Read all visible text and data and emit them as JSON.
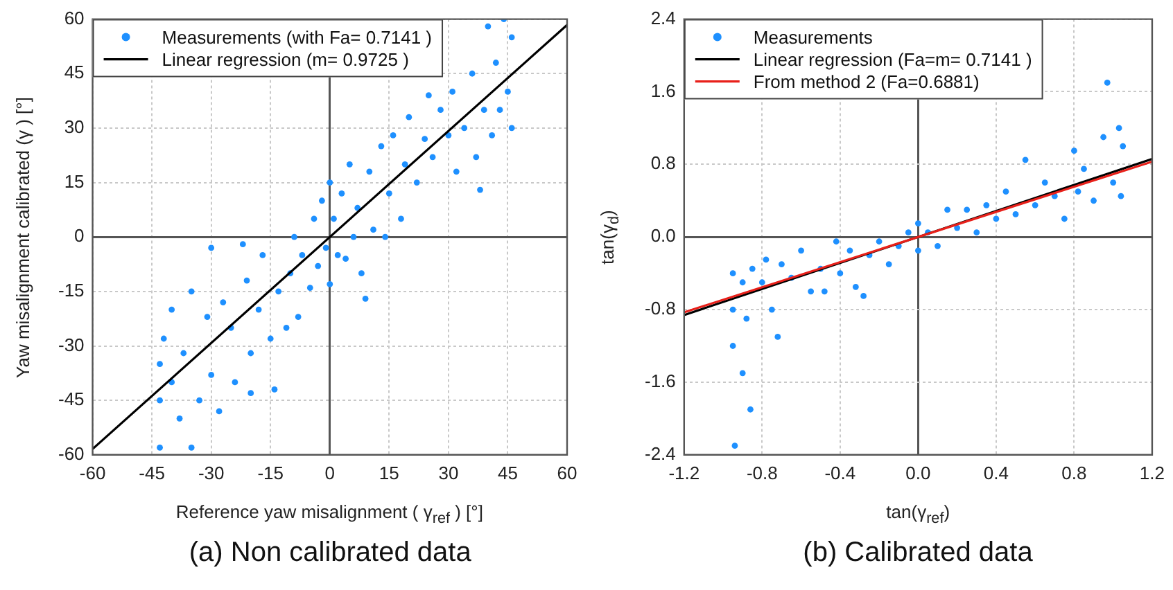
{
  "chart_data": [
    {
      "type": "scatter",
      "title": "(a) Non calibrated data",
      "xlabel": "Reference yaw misalignment ( γ$_{ref}$ ) [°]",
      "ylabel": "Yaw misalignment calibrated (γ ) [°]",
      "xlim": [
        -60,
        60
      ],
      "ylim": [
        -60,
        60
      ],
      "xticks": [
        -60,
        -45,
        -30,
        -15,
        0,
        15,
        30,
        45,
        60
      ],
      "yticks": [
        -60,
        -45,
        -30,
        -15,
        0,
        15,
        30,
        45,
        60
      ],
      "grid": true,
      "legend": "top left",
      "series": [
        {
          "name": "Measurements (with Fa= 0.7141 )",
          "type": "scatter",
          "marker": "circle",
          "color": "#1e90ff",
          "x": [
            -43,
            -43,
            -43,
            -42,
            -40,
            -40,
            -38,
            -37,
            -35,
            -35,
            -33,
            -31,
            -30,
            -30,
            -28,
            -27,
            -25,
            -24,
            -22,
            -21,
            -20,
            -20,
            -18,
            -17,
            -15,
            -14,
            -13,
            -11,
            -10,
            -9,
            -8,
            -7,
            -5,
            -4,
            -3,
            -2,
            -1,
            0,
            0,
            1,
            2,
            3,
            4,
            5,
            6,
            7,
            8,
            9,
            10,
            11,
            13,
            14,
            15,
            16,
            18,
            19,
            20,
            22,
            24,
            25,
            26,
            28,
            30,
            31,
            32,
            34,
            36,
            37,
            38,
            39,
            40,
            41,
            42,
            43,
            44,
            45,
            46,
            46
          ],
          "values": [
            -58,
            -45,
            -35,
            -28,
            -40,
            -20,
            -50,
            -32,
            -15,
            -58,
            -45,
            -22,
            -3,
            -38,
            -48,
            -18,
            -25,
            -40,
            -2,
            -12,
            -32,
            -43,
            -20,
            -5,
            -28,
            -42,
            -15,
            -25,
            -10,
            0,
            -22,
            -5,
            -14,
            5,
            -8,
            10,
            -3,
            15,
            -13,
            5,
            -5,
            12,
            -6,
            20,
            0,
            8,
            -10,
            -17,
            18,
            2,
            25,
            0,
            12,
            28,
            5,
            20,
            33,
            15,
            27,
            39,
            22,
            35,
            28,
            40,
            18,
            30,
            45,
            22,
            13,
            35,
            58,
            28,
            48,
            35,
            60,
            40,
            55,
            30
          ]
        },
        {
          "name": "Linear regression (m= 0.9725 )",
          "type": "line",
          "color": "#000000",
          "x": [
            -60,
            60
          ],
          "values": [
            -58.4,
            58.4
          ]
        }
      ]
    },
    {
      "type": "scatter",
      "title": "(b) Calibrated data",
      "xlabel": "tan(γ$_{ref}$)",
      "ylabel": "tan(γ$_{d}$)",
      "xlim": [
        -1.2,
        1.2
      ],
      "ylim": [
        -2.4,
        2.4
      ],
      "xticks": [
        -1.2,
        -0.8,
        -0.4,
        {
          "value": 0,
          "label": "0.0"
        },
        0.4,
        0.8,
        1.2
      ],
      "yticks": [
        -2.4,
        -1.6,
        -0.8,
        {
          "value": 0,
          "label": "0.0"
        },
        0.8,
        1.6,
        2.4
      ],
      "grid": true,
      "legend": "top left",
      "series": [
        {
          "name": "Measurements",
          "type": "scatter",
          "marker": "circle",
          "color": "#1e90ff",
          "x": [
            -0.95,
            -0.95,
            -0.95,
            -0.94,
            -0.9,
            -0.9,
            -0.88,
            -0.86,
            -0.85,
            -0.8,
            -0.78,
            -0.75,
            -0.72,
            -0.7,
            -0.65,
            -0.6,
            -0.55,
            -0.5,
            -0.48,
            -0.42,
            -0.4,
            -0.35,
            -0.32,
            -0.28,
            -0.25,
            -0.2,
            -0.15,
            -0.1,
            -0.05,
            0,
            0,
            0.05,
            0.1,
            0.15,
            0.2,
            0.25,
            0.3,
            0.35,
            0.4,
            0.45,
            0.5,
            0.55,
            0.6,
            0.65,
            0.7,
            0.75,
            0.8,
            0.82,
            0.85,
            0.9,
            0.95,
            0.97,
            1.0,
            1.03,
            1.04,
            1.05
          ],
          "values": [
            -0.4,
            -0.8,
            -1.2,
            -2.3,
            -0.5,
            -1.5,
            -0.9,
            -1.9,
            -0.35,
            -0.5,
            -0.25,
            -0.8,
            -1.1,
            -0.3,
            -0.45,
            -0.15,
            -0.6,
            -0.35,
            -0.6,
            -0.05,
            -0.4,
            -0.15,
            -0.55,
            -0.65,
            -0.2,
            -0.05,
            -0.3,
            -0.1,
            0.05,
            -0.15,
            0.15,
            0.05,
            -0.1,
            0.3,
            0.1,
            0.3,
            0.05,
            0.35,
            0.2,
            0.5,
            0.25,
            0.85,
            0.35,
            0.6,
            0.45,
            0.2,
            0.95,
            0.5,
            0.75,
            0.4,
            1.1,
            1.7,
            0.6,
            1.2,
            0.45,
            1.0
          ]
        },
        {
          "name": "Linear regression (Fa=m= 0.7141 )",
          "type": "line",
          "color": "#000000",
          "x": [
            -1.2,
            1.2
          ],
          "values": [
            -0.86,
            0.86
          ]
        },
        {
          "name": "From method 2 (Fa=0.6881)",
          "type": "line",
          "color": "#e8201a",
          "x": [
            -1.2,
            1.2
          ],
          "values": [
            -0.83,
            0.83
          ]
        }
      ]
    }
  ]
}
